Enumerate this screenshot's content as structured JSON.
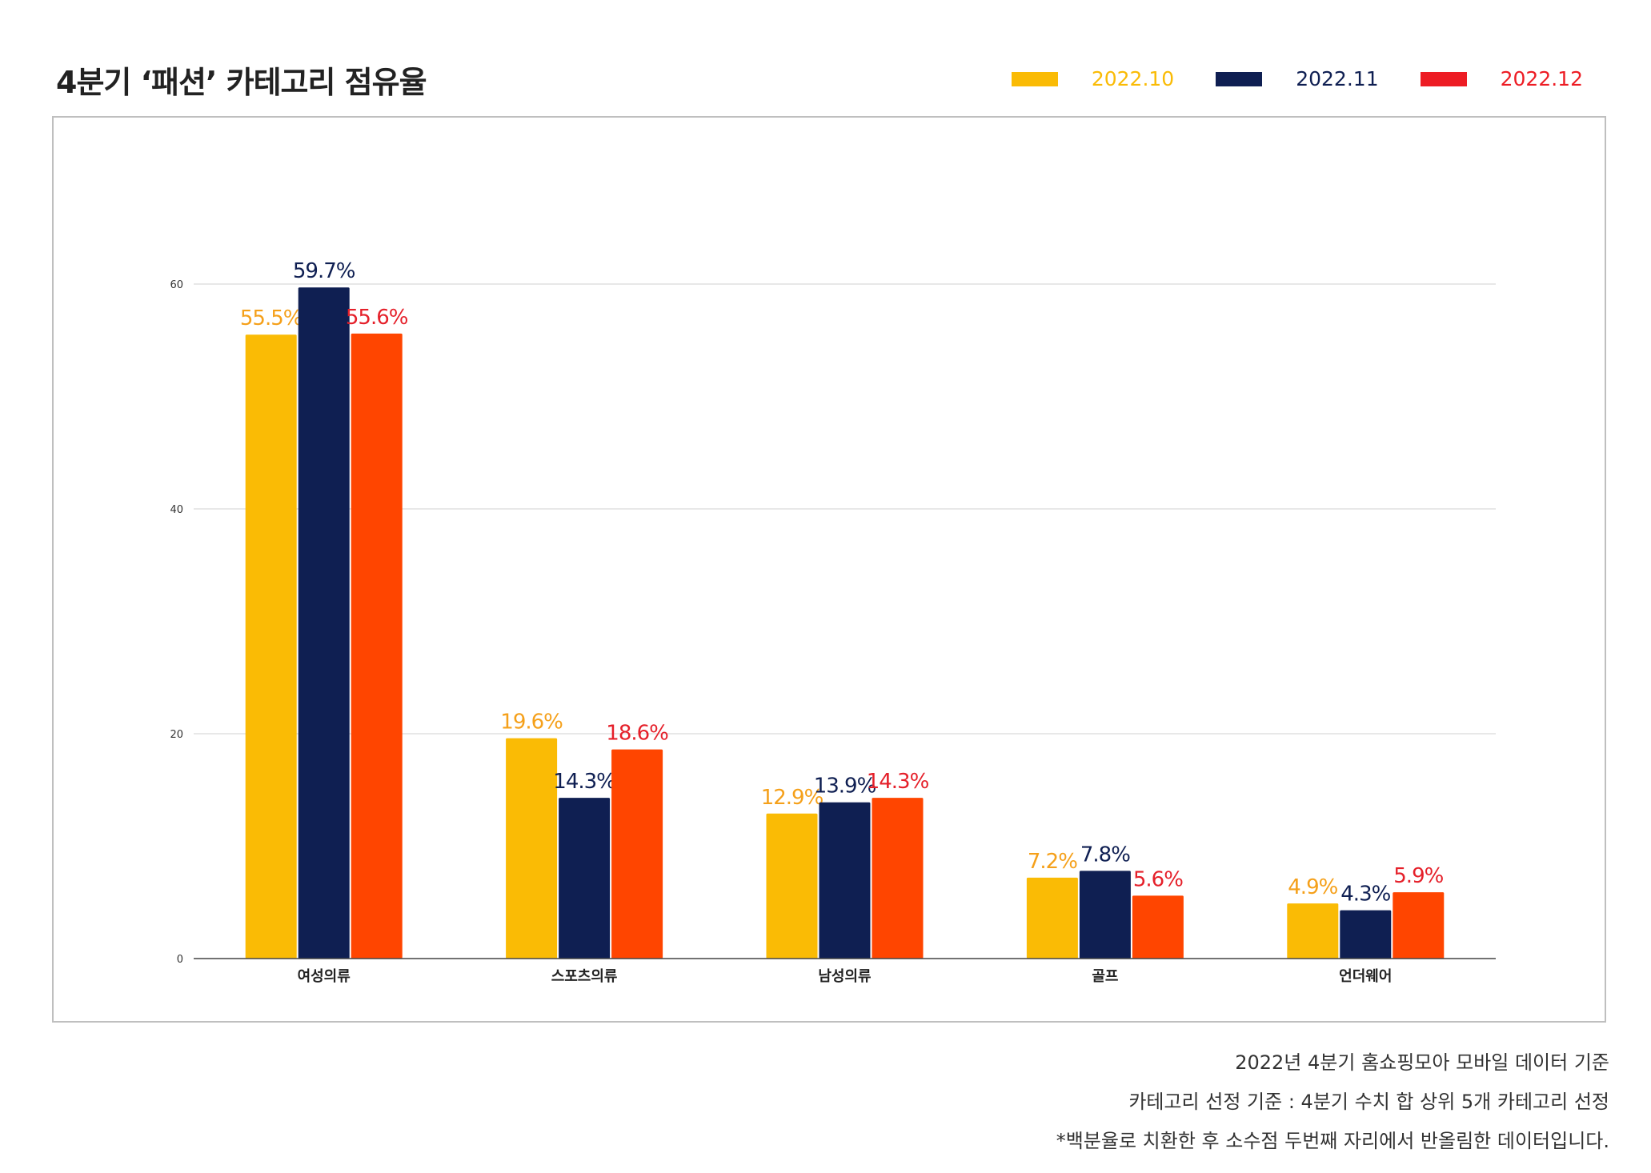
{
  "title": "4분기 ‘패션’ 카테고리 점유율",
  "legend": [
    {
      "label": "2022.10",
      "color": "#FABB05"
    },
    {
      "label": "2022.11",
      "color": "#0F1F52"
    },
    {
      "label": "2022.12",
      "color": "#ED1C24"
    }
  ],
  "chart_data": {
    "type": "bar",
    "title": "4분기 ‘패션’ 카테고리 점유율",
    "categories": [
      "여성의류",
      "스포츠의류",
      "남성의류",
      "골프",
      "언더웨어"
    ],
    "series": [
      {
        "name": "2022.10",
        "values": [
          55.5,
          19.6,
          12.9,
          7.2,
          4.9
        ],
        "color": "#FABB05",
        "label_color": "#F5A01A"
      },
      {
        "name": "2022.11",
        "values": [
          59.7,
          14.3,
          13.9,
          7.8,
          4.3
        ],
        "color": "#0F1F52",
        "label_color": "#0F1F52"
      },
      {
        "name": "2022.12",
        "values": [
          55.6,
          18.6,
          14.3,
          5.6,
          5.9
        ],
        "color": "#FF4500",
        "label_color": "#E5202A"
      }
    ],
    "data_labels": [
      [
        "55.5%",
        "19.6%",
        "12.9%",
        "7.2%",
        "4.9%"
      ],
      [
        "59.7%",
        "14.3%",
        "13.9%",
        "7.8%",
        "4.3%"
      ],
      [
        "55.6%",
        "18.6%",
        "14.3%",
        "5.6%",
        "5.9%"
      ]
    ],
    "y_ticks": [
      0,
      20,
      40,
      60
    ],
    "ylim": [
      0,
      60
    ],
    "grid": true,
    "xlabel": "",
    "ylabel": ""
  },
  "footnotes": [
    "2022년 4분기 홈쇼핑모아 모바일 데이터 기준",
    "카테고리 선정 기준 : 4분기 수치 합 상위 5개 카테고리 선정",
    "*백분율로 치환한 후 소수점 두번째 자리에서 반올림한 데이터입니다."
  ]
}
